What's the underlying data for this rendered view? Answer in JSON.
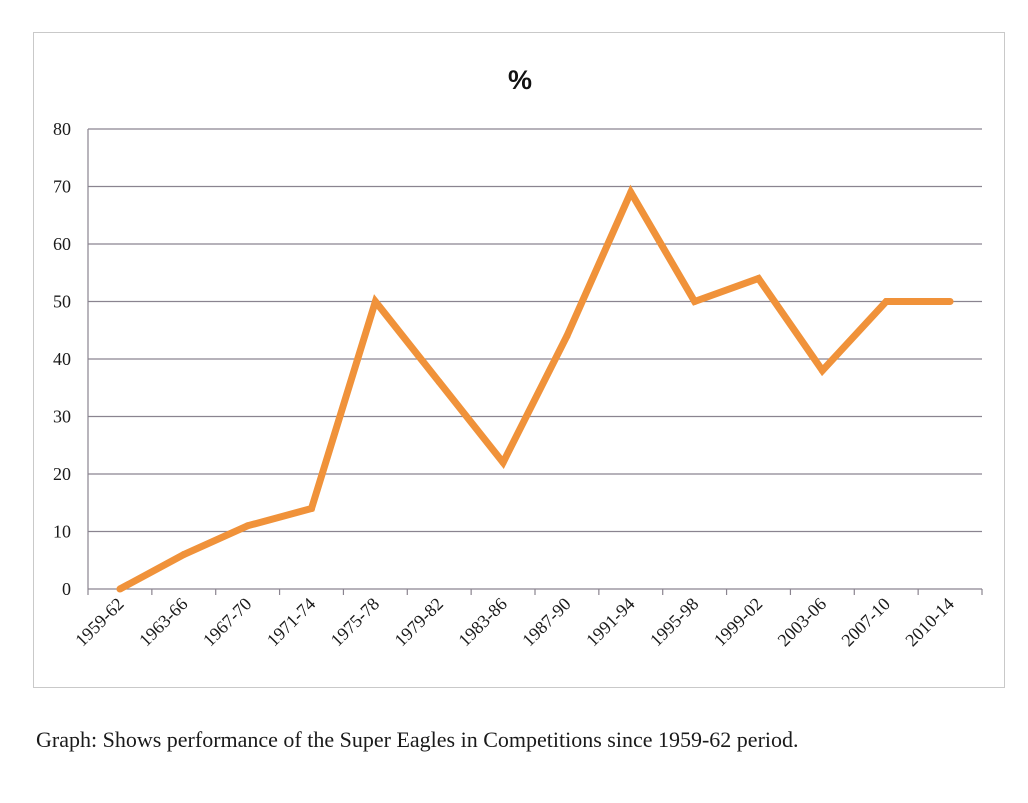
{
  "chart_data": {
    "type": "line",
    "title": "%",
    "xlabel": "",
    "ylabel": "",
    "categories": [
      "1959-62",
      "1963-66",
      "1967-70",
      "1971-74",
      "1975-78",
      "1979-82",
      "1983-86",
      "1987-90",
      "1991-94",
      "1995-98",
      "1999-02",
      "2003-06",
      "2007-10",
      "2010-14"
    ],
    "series": [
      {
        "values": [
          0,
          6,
          11,
          14,
          50,
          36,
          22,
          44,
          69,
          50,
          54,
          38,
          50,
          50
        ],
        "color": "#F0923A"
      }
    ],
    "ylim": [
      0,
      80
    ],
    "yticks": [
      "0",
      "10",
      "20",
      "30",
      "40",
      "50",
      "60",
      "70",
      "80"
    ],
    "grid": true,
    "legend": "none",
    "gridColor": "#8a8490",
    "axisColor": "#8a8490"
  },
  "caption": "Graph: Shows performance of the Super Eagles in Competitions since 1959-62 period."
}
